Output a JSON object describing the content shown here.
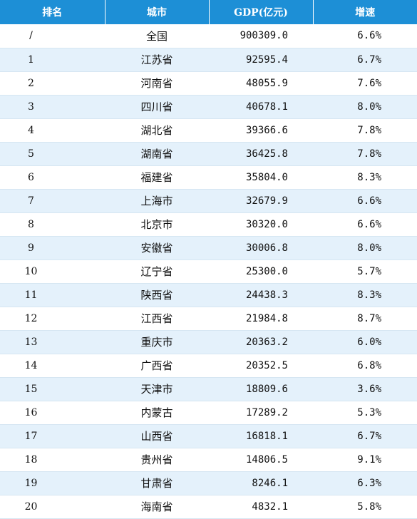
{
  "header": {
    "rank": "排名",
    "city": "城市",
    "gdp": "GDP(亿元)",
    "rate": "增速"
  },
  "rows": [
    {
      "rank": "/",
      "city": "全国",
      "gdp": "900309.0",
      "rate": "6.6%"
    },
    {
      "rank": "1",
      "city": "江苏省",
      "gdp": "92595.4",
      "rate": "6.7%"
    },
    {
      "rank": "2",
      "city": "河南省",
      "gdp": "48055.9",
      "rate": "7.6%"
    },
    {
      "rank": "3",
      "city": "四川省",
      "gdp": "40678.1",
      "rate": "8.0%"
    },
    {
      "rank": "4",
      "city": "湖北省",
      "gdp": "39366.6",
      "rate": "7.8%"
    },
    {
      "rank": "5",
      "city": "湖南省",
      "gdp": "36425.8",
      "rate": "7.8%"
    },
    {
      "rank": "6",
      "city": "福建省",
      "gdp": "35804.0",
      "rate": "8.3%"
    },
    {
      "rank": "7",
      "city": "上海市",
      "gdp": "32679.9",
      "rate": "6.6%"
    },
    {
      "rank": "8",
      "city": "北京市",
      "gdp": "30320.0",
      "rate": "6.6%"
    },
    {
      "rank": "9",
      "city": "安徽省",
      "gdp": "30006.8",
      "rate": "8.0%"
    },
    {
      "rank": "10",
      "city": "辽宁省",
      "gdp": "25300.0",
      "rate": "5.7%"
    },
    {
      "rank": "11",
      "city": "陕西省",
      "gdp": "24438.3",
      "rate": "8.3%"
    },
    {
      "rank": "12",
      "city": "江西省",
      "gdp": "21984.8",
      "rate": "8.7%"
    },
    {
      "rank": "13",
      "city": "重庆市",
      "gdp": "20363.2",
      "rate": "6.0%"
    },
    {
      "rank": "14",
      "city": "广西省",
      "gdp": "20352.5",
      "rate": "6.8%"
    },
    {
      "rank": "15",
      "city": "天津市",
      "gdp": "18809.6",
      "rate": "3.6%"
    },
    {
      "rank": "16",
      "city": "内蒙古",
      "gdp": "17289.2",
      "rate": "5.3%"
    },
    {
      "rank": "17",
      "city": "山西省",
      "gdp": "16818.1",
      "rate": "6.7%"
    },
    {
      "rank": "18",
      "city": "贵州省",
      "gdp": "14806.5",
      "rate": "9.1%"
    },
    {
      "rank": "19",
      "city": "甘肃省",
      "gdp": "8246.1",
      "rate": "6.3%"
    },
    {
      "rank": "20",
      "city": "海南省",
      "gdp": "4832.1",
      "rate": "5.8%"
    }
  ],
  "colors": {
    "header_bg": "#1d8fd6",
    "header_text": "#ffffff",
    "row_alt_bg": "#e4f1fb",
    "row_bg": "#ffffff"
  }
}
